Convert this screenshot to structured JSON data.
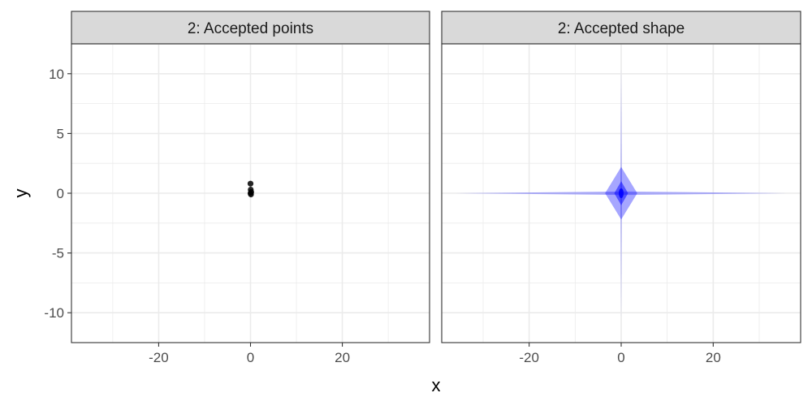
{
  "chart_data": {
    "type": "scatter",
    "xlabel": "x",
    "ylabel": "y",
    "xlim": [
      -39,
      39
    ],
    "ylim": [
      -12.5,
      12.5
    ],
    "x_ticks": [
      -20,
      0,
      20
    ],
    "y_ticks": [
      10,
      5,
      0,
      -5,
      -10
    ],
    "x_tick_labels": [
      "-20",
      "0",
      "20"
    ],
    "y_tick_labels": [
      "10",
      "5",
      "0",
      "-5",
      "-10"
    ],
    "grid": true,
    "panels": [
      {
        "strip": "2: Accepted points",
        "type": "scatter",
        "points": [
          {
            "x": 0.0,
            "y": 0.8
          },
          {
            "x": 0.05,
            "y": 0.3
          },
          {
            "x": 0.15,
            "y": 0.1
          },
          {
            "x": 0.1,
            "y": -0.1
          },
          {
            "x": 0.0,
            "y": 0.0
          }
        ],
        "point_color": "#000000"
      },
      {
        "strip": "2: Accepted shape",
        "type": "area",
        "fill_color": "#0000ff",
        "shapes": [
          {
            "name": "horizontal spike",
            "x_extent": [
              -36,
              36
            ],
            "y_extent": [
              -0.15,
              0.15
            ],
            "opacity": 0.3
          },
          {
            "name": "vertical spike",
            "x_extent": [
              -0.15,
              0.15
            ],
            "y_extent": [
              -10.5,
              10.5
            ],
            "opacity": 0.3
          },
          {
            "name": "diamond",
            "x_extent": [
              -3.5,
              3.5
            ],
            "y_extent": [
              -2.2,
              2.2
            ],
            "opacity": 0.35
          },
          {
            "name": "inner diamond",
            "x_extent": [
              -1.5,
              1.5
            ],
            "y_extent": [
              -1.0,
              1.0
            ],
            "opacity": 0.5
          }
        ]
      }
    ]
  }
}
